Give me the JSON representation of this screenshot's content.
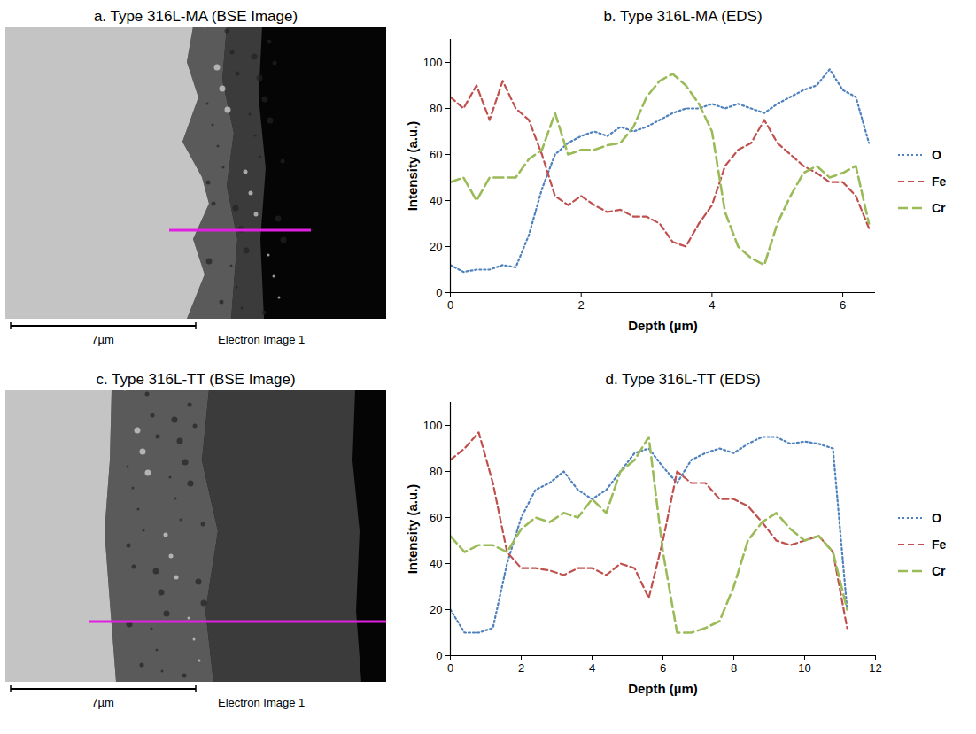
{
  "chart_data": [
    {
      "type": "image",
      "title": "a. Type 316L-MA (BSE Image)",
      "scale_bar": "7µm",
      "caption": "Electron Image 1"
    },
    {
      "type": "line",
      "title": "b. Type 316L-MA (EDS)",
      "x_label": "Depth (µm)",
      "y_label": "Intensity (a.u.)",
      "x": [
        0,
        0.2,
        0.4,
        0.6,
        0.8,
        1.0,
        1.2,
        1.4,
        1.6,
        1.8,
        2.0,
        2.2,
        2.4,
        2.6,
        2.8,
        3.0,
        3.2,
        3.4,
        3.6,
        3.8,
        4.0,
        4.2,
        4.4,
        4.6,
        4.8,
        5.0,
        5.2,
        5.4,
        5.6,
        5.8,
        6.0,
        6.2,
        6.4
      ],
      "series": [
        {
          "name": "O",
          "color": "#4f81bd",
          "line_style": "dotted",
          "values": [
            12,
            9,
            10,
            10,
            12,
            11,
            25,
            45,
            60,
            65,
            68,
            70,
            68,
            72,
            70,
            72,
            75,
            78,
            80,
            80,
            82,
            80,
            82,
            80,
            78,
            82,
            85,
            88,
            90,
            97,
            88,
            85,
            65
          ]
        },
        {
          "name": "Fe",
          "color": "#c0504d",
          "line_style": "dashed",
          "values": [
            85,
            80,
            90,
            75,
            92,
            80,
            75,
            60,
            42,
            38,
            42,
            38,
            35,
            36,
            33,
            33,
            30,
            22,
            20,
            30,
            38,
            55,
            62,
            65,
            75,
            65,
            60,
            55,
            52,
            48,
            48,
            42,
            28
          ]
        },
        {
          "name": "Cr",
          "color": "#9bbb59",
          "line_style": "long_dash",
          "values": [
            48,
            50,
            40,
            50,
            50,
            50,
            58,
            62,
            78,
            60,
            62,
            62,
            64,
            65,
            72,
            85,
            92,
            95,
            90,
            82,
            70,
            35,
            20,
            15,
            12,
            30,
            42,
            52,
            55,
            50,
            52,
            55,
            30
          ]
        }
      ],
      "xlim": [
        0,
        6.5
      ],
      "xticks": [
        0,
        2,
        4,
        6
      ],
      "ylim": [
        0,
        110
      ],
      "yticks": [
        0,
        20,
        40,
        60,
        80,
        100
      ],
      "legend": "right"
    },
    {
      "type": "image",
      "title": "c. Type 316L-TT (BSE Image)",
      "scale_bar": "7µm",
      "caption": "Electron Image 1"
    },
    {
      "type": "line",
      "title": "d. Type 316L-TT (EDS)",
      "x_label": "Depth (µm)",
      "y_label": "Intensity (a.u.)",
      "x": [
        0,
        0.4,
        0.8,
        1.2,
        1.6,
        2.0,
        2.4,
        2.8,
        3.2,
        3.6,
        4.0,
        4.4,
        4.8,
        5.2,
        5.6,
        6.0,
        6.4,
        6.8,
        7.2,
        7.6,
        8.0,
        8.4,
        8.8,
        9.2,
        9.6,
        10.0,
        10.4,
        10.8,
        11.2
      ],
      "series": [
        {
          "name": "O",
          "color": "#4f81bd",
          "line_style": "dotted",
          "values": [
            20,
            10,
            10,
            12,
            40,
            60,
            72,
            75,
            80,
            72,
            68,
            72,
            80,
            88,
            90,
            82,
            75,
            85,
            88,
            90,
            88,
            92,
            95,
            95,
            92,
            93,
            92,
            90,
            20
          ]
        },
        {
          "name": "Fe",
          "color": "#c0504d",
          "line_style": "dashed",
          "values": [
            85,
            90,
            97,
            75,
            45,
            38,
            38,
            37,
            35,
            38,
            38,
            35,
            40,
            38,
            25,
            50,
            80,
            75,
            75,
            68,
            68,
            65,
            58,
            50,
            48,
            50,
            52,
            45,
            12
          ]
        },
        {
          "name": "Cr",
          "color": "#9bbb59",
          "line_style": "long_dash",
          "values": [
            52,
            45,
            48,
            48,
            45,
            55,
            60,
            58,
            62,
            60,
            68,
            62,
            80,
            85,
            95,
            45,
            10,
            10,
            12,
            15,
            30,
            50,
            58,
            62,
            55,
            50,
            52,
            45,
            20
          ]
        }
      ],
      "xlim": [
        0,
        12
      ],
      "xticks": [
        0,
        2,
        4,
        6,
        8,
        10,
        12
      ],
      "ylim": [
        0,
        110
      ],
      "yticks": [
        0,
        20,
        40,
        60,
        80,
        100
      ],
      "legend": "right"
    }
  ]
}
